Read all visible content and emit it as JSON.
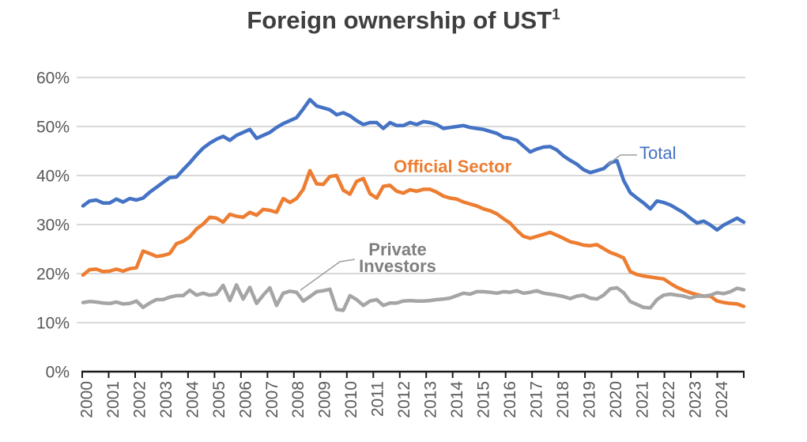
{
  "title": {
    "text": "Foreign ownership of UST",
    "superscript": "1"
  },
  "colors": {
    "title_text": "#3F3F3F",
    "axis_text": "#595959",
    "gridline": "#D9D9D9",
    "axis_line": "#1A1A1A",
    "total": "#4472C4",
    "official_sector": "#ED7D31",
    "private_investors": "#A5A5A5",
    "annotation_leader": "#9E9E9E",
    "private_label_text": "#7F7F7F"
  },
  "chart_data": {
    "type": "line",
    "title": "Foreign ownership of UST¹",
    "frequency": "quarterly",
    "x_range_years": [
      2000,
      2025
    ],
    "year_labels": [
      "2000",
      "2001",
      "2002",
      "2003",
      "2004",
      "2005",
      "2006",
      "2007",
      "2008",
      "2009",
      "2010",
      "2011",
      "2012",
      "2013",
      "2014",
      "2015",
      "2016",
      "2017",
      "2018",
      "2019",
      "2020",
      "2021",
      "2022",
      "2023",
      "2024"
    ],
    "y_axis": {
      "min": 0,
      "max": 60,
      "tick_values": [
        0,
        10,
        20,
        30,
        40,
        50,
        60
      ],
      "tick_labels": [
        "0%",
        "10%",
        "20%",
        "30%",
        "40%",
        "50%",
        "60%"
      ],
      "gridlines": "horizontal"
    },
    "legend_position": "inline-labels",
    "annotations": {
      "total_label": "Total",
      "official_sector_label": "Official Sector",
      "private_investors_label": "Private\nInvestors"
    },
    "series": [
      {
        "name": "Total",
        "color": "#4472C4",
        "values": [
          33.8,
          34.8,
          35.0,
          34.4,
          34.4,
          35.2,
          34.6,
          35.3,
          35.0,
          35.4,
          36.6,
          37.6,
          38.6,
          39.6,
          39.7,
          41.2,
          42.6,
          44.2,
          45.6,
          46.6,
          47.4,
          48.0,
          47.2,
          48.2,
          48.8,
          49.4,
          47.6,
          48.2,
          48.8,
          49.8,
          50.6,
          51.2,
          51.8,
          53.6,
          55.5,
          54.2,
          53.8,
          53.4,
          52.4,
          52.8,
          52.2,
          51.2,
          50.4,
          50.8,
          50.8,
          49.6,
          50.8,
          50.2,
          50.2,
          50.8,
          50.4,
          51.0,
          50.8,
          50.4,
          49.6,
          49.8,
          50.0,
          50.2,
          49.8,
          49.6,
          49.4,
          49.0,
          48.6,
          47.8,
          47.6,
          47.2,
          46.0,
          44.8,
          45.4,
          45.8,
          45.9,
          45.2,
          44.0,
          43.1,
          42.3,
          41.2,
          40.6,
          41.0,
          41.4,
          42.6,
          43.0,
          39.0,
          36.5,
          35.4,
          34.4,
          33.2,
          34.8,
          34.5,
          34.0,
          33.2,
          32.4,
          31.3,
          30.3,
          30.7,
          29.9,
          28.9,
          29.9,
          30.6,
          31.3,
          30.5
        ]
      },
      {
        "name": "Official Sector",
        "color": "#ED7D31",
        "values": [
          19.7,
          20.8,
          20.9,
          20.4,
          20.5,
          20.9,
          20.5,
          21.0,
          21.2,
          24.6,
          24.1,
          23.5,
          23.7,
          24.1,
          26.1,
          26.6,
          27.5,
          29.1,
          30.1,
          31.5,
          31.3,
          30.5,
          32.1,
          31.7,
          31.5,
          32.5,
          31.9,
          33.1,
          32.9,
          32.5,
          35.3,
          34.5,
          35.3,
          37.2,
          41.0,
          38.3,
          38.2,
          39.8,
          40.0,
          37.0,
          36.2,
          38.8,
          39.4,
          36.3,
          35.4,
          37.8,
          38.0,
          36.8,
          36.4,
          37.1,
          36.8,
          37.2,
          37.2,
          36.6,
          35.8,
          35.4,
          35.2,
          34.6,
          34.2,
          33.8,
          33.2,
          32.8,
          32.2,
          31.2,
          30.3,
          28.8,
          27.6,
          27.2,
          27.6,
          28.0,
          28.4,
          27.8,
          27.2,
          26.5,
          26.2,
          25.8,
          25.7,
          25.9,
          25.1,
          24.3,
          23.8,
          23.2,
          20.4,
          19.8,
          19.5,
          19.3,
          19.1,
          18.9,
          18.0,
          17.2,
          16.6,
          16.1,
          15.7,
          15.4,
          15.4,
          14.4,
          14.1,
          13.9,
          13.8,
          13.3
        ]
      },
      {
        "name": "Private Investors",
        "color": "#A5A5A5",
        "values": [
          14.1,
          14.3,
          14.2,
          14.0,
          13.9,
          14.2,
          13.8,
          13.9,
          14.4,
          13.1,
          14.0,
          14.7,
          14.7,
          15.2,
          15.5,
          15.5,
          16.6,
          15.6,
          16.0,
          15.6,
          15.8,
          17.6,
          14.5,
          17.7,
          14.8,
          17.2,
          13.9,
          15.6,
          17.1,
          13.5,
          16.0,
          16.4,
          16.2,
          14.4,
          15.3,
          16.3,
          16.5,
          16.8,
          12.7,
          12.5,
          15.5,
          14.7,
          13.5,
          14.4,
          14.7,
          13.5,
          14.0,
          14.0,
          14.4,
          14.5,
          14.4,
          14.4,
          14.5,
          14.7,
          14.8,
          15.0,
          15.5,
          16.0,
          15.8,
          16.3,
          16.3,
          16.2,
          16.0,
          16.3,
          16.2,
          16.5,
          16.0,
          16.2,
          16.5,
          16.0,
          15.8,
          15.6,
          15.3,
          14.9,
          15.4,
          15.6,
          15.0,
          14.8,
          15.6,
          16.9,
          17.1,
          16.1,
          14.3,
          13.7,
          13.1,
          13.0,
          14.7,
          15.6,
          15.8,
          15.6,
          15.4,
          15.0,
          15.4,
          15.4,
          15.6,
          16.1,
          15.9,
          16.3,
          17.0,
          16.7
        ]
      }
    ]
  }
}
